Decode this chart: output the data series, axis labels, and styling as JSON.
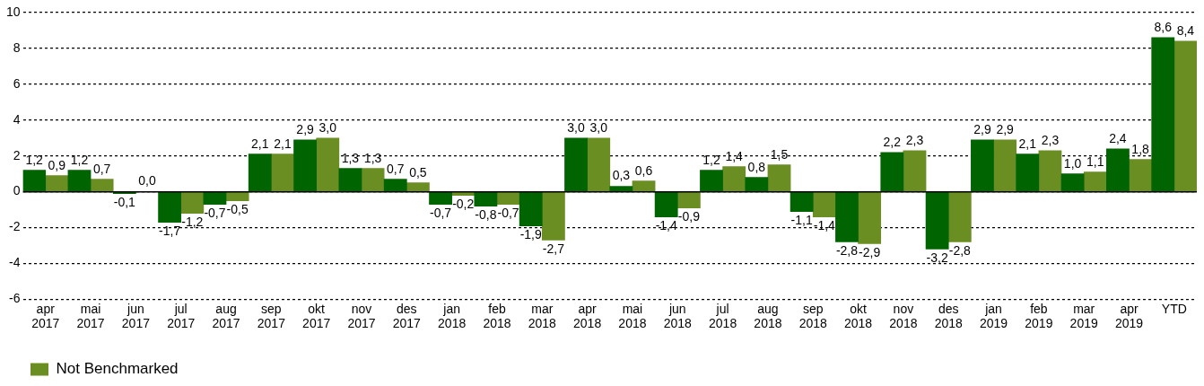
{
  "chart_data": {
    "type": "bar",
    "categories": [
      "apr\n2017",
      "mai\n2017",
      "jun\n2017",
      "jul\n2017",
      "aug\n2017",
      "sep\n2017",
      "okt\n2017",
      "nov\n2017",
      "des\n2017",
      "jan\n2018",
      "feb\n2018",
      "mar\n2018",
      "apr\n2018",
      "mai\n2018",
      "jun\n2018",
      "jul\n2018",
      "aug\n2018",
      "sep\n2018",
      "okt\n2018",
      "nov\n2018",
      "des\n2018",
      "jan\n2019",
      "feb\n2019",
      "mar\n2019",
      "apr\n2019",
      "YTD"
    ],
    "series": [
      {
        "color": "#006400",
        "values": [
          1.2,
          1.2,
          -0.1,
          -1.7,
          -0.7,
          2.1,
          2.9,
          1.3,
          0.7,
          -0.7,
          -0.8,
          -1.9,
          3.0,
          0.3,
          -1.4,
          1.2,
          0.8,
          -1.1,
          -2.8,
          2.2,
          -3.2,
          2.9,
          2.1,
          1.0,
          2.4,
          8.6
        ],
        "value_labels": [
          "1,2",
          "1,2",
          "-0,1",
          "-1,7",
          "-0,7",
          "2,1",
          "2,9",
          "1,3",
          "0,7",
          "-0,7",
          "-0,8",
          "-1,9",
          "3,0",
          "0,3",
          "-1,4",
          "1,2",
          "0,8",
          "-1,1",
          "-2,8",
          "2,2",
          "-3,2",
          "2,9",
          "2,1",
          "1,0",
          "2,4",
          "8,6"
        ]
      },
      {
        "name": "Not Benchmarked",
        "color": "#6b8e23",
        "values": [
          0.9,
          0.7,
          0.0,
          -1.2,
          -0.5,
          2.1,
          3.0,
          1.3,
          0.5,
          -0.2,
          -0.7,
          -2.7,
          3.0,
          0.6,
          -0.9,
          1.4,
          1.5,
          -1.4,
          -2.9,
          2.3,
          -2.8,
          2.9,
          2.3,
          1.1,
          1.8,
          8.4
        ],
        "value_labels": [
          "0,9",
          "0,7",
          "0,0",
          "-1,2",
          "-0,5",
          "2,1",
          "3,0",
          "1,3",
          "0,5",
          "-0,2",
          "-0,7",
          "-2,7",
          "3,0",
          "0,6",
          "-0,9",
          "1,4",
          "1,5",
          "-1,4",
          "-2,9",
          "2,3",
          "-2,8",
          "2,9",
          "2,3",
          "1,1",
          "1,8",
          "8,4"
        ]
      }
    ],
    "ylim": [
      -6,
      10
    ],
    "yticks": [
      -6,
      -4,
      -2,
      0,
      2,
      4,
      6,
      8,
      10
    ],
    "grid": "y",
    "legend": "bottom",
    "ref_lines": [
      {
        "axis": "y",
        "value": 0,
        "color": "#000000"
      }
    ]
  }
}
